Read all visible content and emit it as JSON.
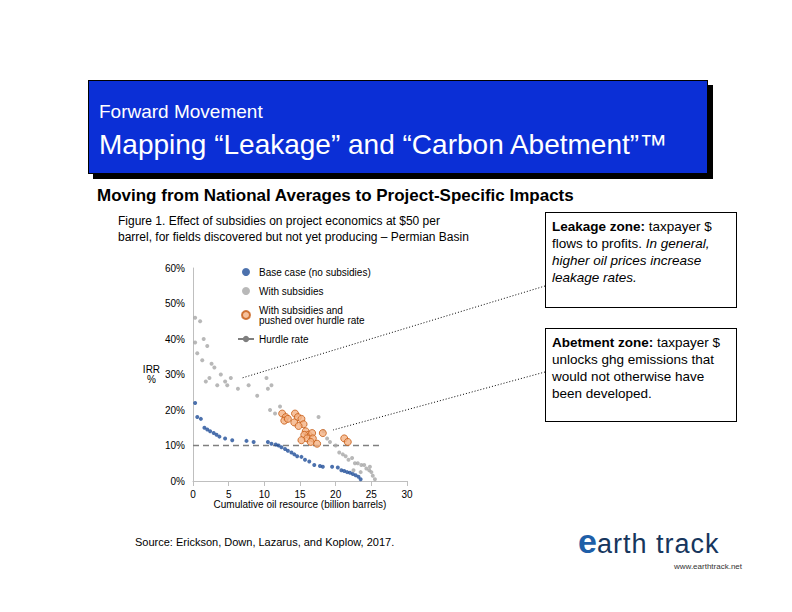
{
  "header": {
    "line1": "Forward Movement",
    "line2": "Mapping “Leakage” and “Carbon Abetment”™"
  },
  "subtitle": "Moving from National Averages to Project-Specific Impacts",
  "callouts": [
    {
      "heading": "Leakage zone:",
      "text": "taxpayer $ flows to profits.",
      "italic": "In general, higher oil prices increase leakage rates."
    },
    {
      "heading": "Abetment zone:",
      "text": "taxpayer $ unlocks ghg emissions that would not otherwise have been developed."
    }
  ],
  "source": "Source: Erickson, Down, Lazarus, and Koplow, 2017.",
  "logo": {
    "name": "earth track",
    "url": "www.earthtrack.net"
  },
  "chart_data": {
    "type": "scatter",
    "title": "Figure 1.  Effect of subsidies on project economics at $50 per\nbarrel, for fields discovered but not yet producing – Permian Basin",
    "xlabel": "Cumulative oil resource (billion barrels)",
    "ylabel": "IRR\n%",
    "xlim": [
      0,
      30
    ],
    "xticks": [
      0,
      5,
      10,
      15,
      20,
      25,
      30
    ],
    "ylim": [
      0,
      60
    ],
    "yticks": [
      {
        "value": 0,
        "label": "0%"
      },
      {
        "value": 10,
        "label": "10%"
      },
      {
        "value": 20,
        "label": "20%"
      },
      {
        "value": 30,
        "label": "30%"
      },
      {
        "value": 40,
        "label": "40%"
      },
      {
        "value": 50,
        "label": "50%"
      },
      {
        "value": 60,
        "label": "60%"
      }
    ],
    "grid": false,
    "legend": "upper left",
    "series": [
      {
        "name": "Base case (no subsidies)",
        "color": "#1f4e99",
        "marker": "circle",
        "x": [
          0.3,
          0.6,
          1.1,
          1.6,
          2.0,
          2.4,
          2.9,
          3.3,
          3.7,
          4.5,
          5.5,
          7.5,
          8.5,
          10.5,
          11.0,
          11.6,
          12.0,
          12.4,
          12.9,
          13.3,
          13.8,
          14.2,
          14.6,
          15.2,
          15.7,
          16.3,
          17.0,
          17.8,
          18.2,
          19.5,
          20.3,
          20.8,
          21.2,
          21.6,
          22.0,
          22.4,
          22.8,
          23.2,
          23.5
        ],
        "values": [
          22,
          18,
          17.5,
          15,
          14.5,
          14,
          13.5,
          13,
          12.5,
          12,
          11.5,
          11.3,
          11,
          11,
          10.5,
          10.3,
          10,
          9.5,
          9,
          8.5,
          8,
          7.5,
          7,
          6.8,
          6,
          5.5,
          4.5,
          4.2,
          4,
          4,
          3.8,
          3,
          2.8,
          2.5,
          2.3,
          2,
          1.6,
          1.2,
          0.5
        ]
      },
      {
        "name": "With subsidies",
        "color": "#a6a6a6",
        "marker": "circle",
        "x": [
          0.3,
          1.0,
          0.3,
          1.5,
          0.6,
          1.3,
          2.0,
          1.8,
          2.3,
          2.6,
          3.0,
          3.4,
          3.9,
          4.5,
          4.8,
          5.3,
          6.3,
          7.8,
          9.0,
          10.3,
          10.5,
          11.0,
          10.8,
          11.5,
          12.2,
          17.6,
          18.3,
          18.8,
          19.2,
          20.0,
          20.5,
          21.0,
          21.4,
          21.8,
          22.3,
          22.7,
          23.1,
          23.6,
          24.0,
          24.3,
          24.7,
          25.0,
          25.2,
          25.5,
          22.5,
          23.5,
          24.8
        ],
        "values": [
          46,
          45,
          39,
          40,
          36,
          34,
          38,
          28,
          29,
          33,
          32,
          27,
          30,
          28,
          27,
          29,
          26,
          27,
          24,
          29,
          26,
          27,
          20,
          19,
          21,
          18,
          14,
          12,
          11,
          10,
          8,
          7.5,
          7,
          6,
          6.5,
          5,
          5,
          4.5,
          4.5,
          3.5,
          3,
          2.5,
          1.5,
          0.5,
          3,
          2.5,
          4
        ]
      },
      {
        "name": "With subsidies and\npushed over hurdle rate",
        "color": "#f4b183",
        "marker": "outlined_circle",
        "x": [
          12.5,
          13.0,
          12.8,
          13.3,
          14.3,
          14.7,
          15.2,
          14.2,
          15.5,
          14.8,
          15.8,
          16.2,
          16.7,
          15.6,
          16.0,
          16.8,
          15.2,
          16.5,
          17.4,
          18.2,
          21.2,
          21.7
        ],
        "values": [
          19,
          18,
          17,
          17.5,
          19,
          18,
          17.5,
          16.5,
          16,
          15.5,
          14,
          13,
          13.5,
          13,
          12,
          12,
          11.5,
          11,
          10.5,
          13.5,
          12,
          11
        ]
      },
      {
        "name": "Hurdle rate",
        "type": "line",
        "color": "#7f7f7f",
        "line_style": "dashed",
        "x": [
          0,
          26.5
        ],
        "values": [
          10,
          10
        ]
      }
    ]
  }
}
